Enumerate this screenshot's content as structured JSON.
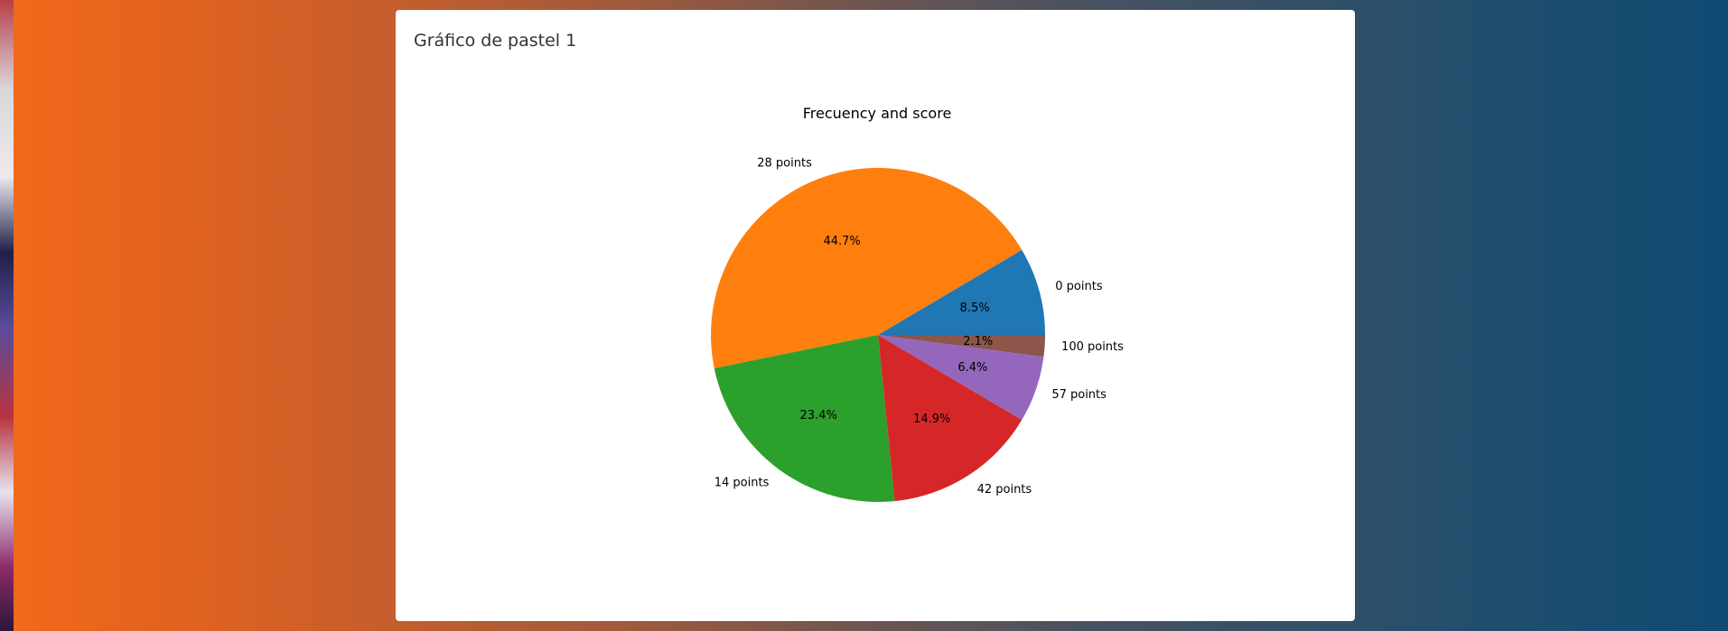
{
  "card": {
    "title": "Gráfico de pastel 1"
  },
  "chart_data": {
    "type": "pie",
    "title": "Frecuency and score",
    "categories": [
      "0 points",
      "28 points",
      "14 points",
      "42 points",
      "57 points",
      "100 points"
    ],
    "values": [
      8.5,
      44.7,
      23.4,
      14.9,
      6.4,
      2.1
    ],
    "pct_labels": [
      "8.5%",
      "44.7%",
      "23.4%",
      "14.9%",
      "6.4%",
      "2.1%"
    ],
    "colors": [
      "#1f77b4",
      "#ff7f0e",
      "#2ca02c",
      "#d62728",
      "#9467bd",
      "#8c564b"
    ],
    "start_angle_deg": 0,
    "direction": "counterclockwise"
  }
}
